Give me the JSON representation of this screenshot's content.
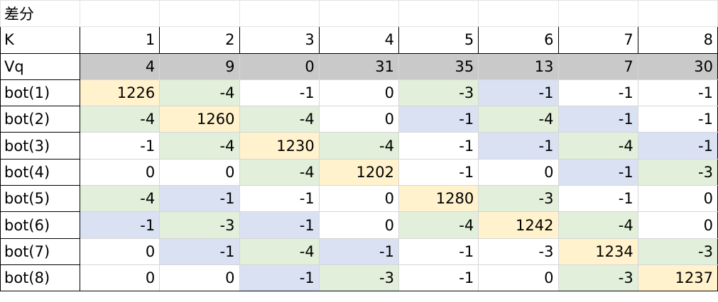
{
  "title": "差分",
  "header": {
    "label": "K",
    "values": [
      "1",
      "2",
      "3",
      "4",
      "5",
      "6",
      "7",
      "8"
    ]
  },
  "vq": {
    "label": "Vq",
    "values": [
      "4",
      "9",
      "0",
      "31",
      "35",
      "13",
      "7",
      "30"
    ]
  },
  "colors": {
    "diagonal": "#fff2cc",
    "green": "#e2efda",
    "blue": "#d9e1f2",
    "vq_gray": "#c9c9c9",
    "white": "#ffffff"
  },
  "rows": [
    {
      "label": "bot(1)",
      "values": [
        "1226",
        "-4",
        "-1",
        "0",
        "-3",
        "-1",
        "-1",
        "-1"
      ],
      "fills": [
        "diagonal",
        "green",
        "white",
        "white",
        "green",
        "blue",
        "white",
        "white"
      ]
    },
    {
      "label": "bot(2)",
      "values": [
        "-4",
        "1260",
        "-4",
        "0",
        "-1",
        "-4",
        "-1",
        "-1"
      ],
      "fills": [
        "green",
        "diagonal",
        "green",
        "white",
        "blue",
        "green",
        "blue",
        "white"
      ]
    },
    {
      "label": "bot(3)",
      "values": [
        "-1",
        "-4",
        "1230",
        "-4",
        "-1",
        "-1",
        "-4",
        "-1"
      ],
      "fills": [
        "white",
        "green",
        "diagonal",
        "green",
        "white",
        "blue",
        "green",
        "blue"
      ]
    },
    {
      "label": "bot(4)",
      "values": [
        "0",
        "0",
        "-4",
        "1202",
        "-1",
        "0",
        "-1",
        "-3"
      ],
      "fills": [
        "white",
        "white",
        "green",
        "diagonal",
        "white",
        "white",
        "blue",
        "green"
      ]
    },
    {
      "label": "bot(5)",
      "values": [
        "-4",
        "-1",
        "-1",
        "0",
        "1280",
        "-3",
        "-1",
        "0"
      ],
      "fills": [
        "green",
        "blue",
        "white",
        "white",
        "diagonal",
        "green",
        "white",
        "white"
      ]
    },
    {
      "label": "bot(6)",
      "values": [
        "-1",
        "-3",
        "-1",
        "0",
        "-4",
        "1242",
        "-4",
        "0"
      ],
      "fills": [
        "blue",
        "green",
        "blue",
        "white",
        "green",
        "diagonal",
        "green",
        "white"
      ]
    },
    {
      "label": "bot(7)",
      "values": [
        "0",
        "-1",
        "-4",
        "-1",
        "-1",
        "-3",
        "1234",
        "-3"
      ],
      "fills": [
        "white",
        "blue",
        "green",
        "blue",
        "white",
        "white",
        "diagonal",
        "green"
      ]
    },
    {
      "label": "bot(8)",
      "values": [
        "0",
        "0",
        "-1",
        "-3",
        "-1",
        "0",
        "-3",
        "1237"
      ],
      "fills": [
        "white",
        "white",
        "blue",
        "green",
        "white",
        "white",
        "green",
        "diagonal"
      ]
    }
  ]
}
